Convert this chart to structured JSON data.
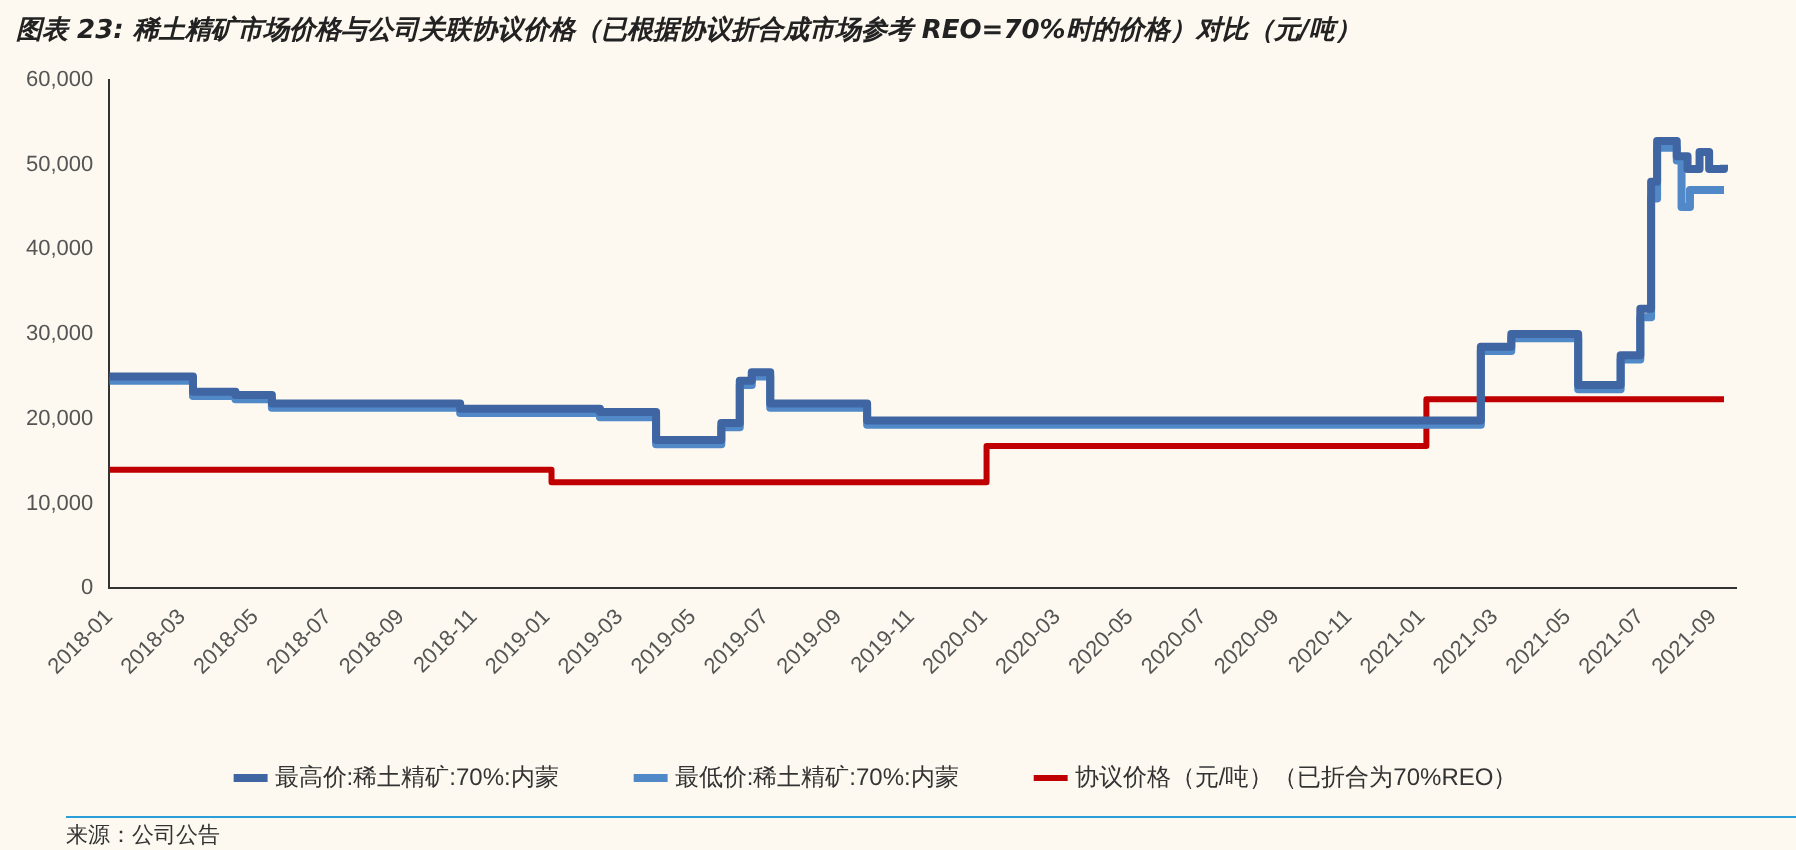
{
  "chart_data": {
    "type": "step",
    "title": "图表 23:  稀土精矿市场价格与公司关联协议价格（已根据协议折合成市场参考 REO=70%时的价格）对比（元/吨）",
    "annotations": [
      "来源：公司公告"
    ],
    "series": [
      {
        "name": "最高价:稀土精矿:70%:内蒙",
        "color": "#3f66a3",
        "x": [
          "2018-01-01",
          "2018-03-10",
          "2018-04-15",
          "2018-05-15",
          "2018-10-20",
          "2019-02-15",
          "2019-04-01",
          "2019-05-25",
          "2019-06-10",
          "2019-06-20",
          "2019-07-05",
          "2019-09-25",
          "2021-02-20",
          "2021-03-15",
          "2021-05-10",
          "2021-06-15",
          "2021-07-01",
          "2021-07-10",
          "2021-07-15",
          "2021-08-01",
          "2021-08-10",
          "2021-08-20",
          "2021-08-28",
          "2021-09-10"
        ],
        "values": [
          25000,
          23200,
          22800,
          21800,
          21200,
          20800,
          17500,
          19500,
          24500,
          25500,
          21800,
          19800,
          28500,
          30000,
          24000,
          27500,
          33000,
          48000,
          52800,
          51000,
          49500,
          51500,
          49500,
          50000
        ]
      },
      {
        "name": "最低价:稀土精矿:70%:内蒙",
        "color": "#5088c8",
        "x": [
          "2018-01-01",
          "2018-03-10",
          "2018-04-15",
          "2018-05-15",
          "2018-10-20",
          "2019-02-15",
          "2019-04-01",
          "2019-05-25",
          "2019-06-10",
          "2019-06-20",
          "2019-07-05",
          "2019-09-25",
          "2021-02-20",
          "2021-03-15",
          "2021-05-10",
          "2021-06-15",
          "2021-07-01",
          "2021-07-10",
          "2021-07-15",
          "2021-08-01",
          "2021-08-05",
          "2021-08-12",
          "2021-09-10"
        ],
        "values": [
          24500,
          22700,
          22300,
          21300,
          20700,
          20200,
          17000,
          19000,
          24000,
          25000,
          21300,
          19300,
          28000,
          29500,
          23500,
          27000,
          32000,
          46000,
          52000,
          50500,
          45000,
          47000,
          47000
        ]
      },
      {
        "name": "协议价格（元/吨）（已折合为70%REO）",
        "color": "#c00000",
        "x": [
          "2018-01-01",
          "2019-01-05",
          "2020-01-03",
          "2021-01-05",
          "2021-09-10"
        ],
        "values": [
          14000,
          12500,
          16800,
          22300,
          22300
        ]
      }
    ],
    "xlim": [
      "2018-01-01",
      "2021-09-20"
    ],
    "xticks": [
      "2018-01",
      "2018-03",
      "2018-05",
      "2018-07",
      "2018-09",
      "2018-11",
      "2019-01",
      "2019-03",
      "2019-05",
      "2019-07",
      "2019-09",
      "2019-11",
      "2020-01",
      "2020-03",
      "2020-05",
      "2020-07",
      "2020-09",
      "2020-11",
      "2021-01",
      "2021-03",
      "2021-05",
      "2021-07",
      "2021-09"
    ],
    "ylim": [
      0,
      60000
    ],
    "yticks": [
      0,
      {
        "value": 10000,
        "label": "10,000"
      },
      {
        "value": 20000,
        "label": "20,000"
      },
      {
        "value": 30000,
        "label": "30,000"
      },
      {
        "value": 40000,
        "label": "40,000"
      },
      {
        "value": 50000,
        "label": "50,000"
      },
      {
        "value": 60000,
        "label": "60,000"
      }
    ],
    "grid": false,
    "legend": "bottom",
    "line_style": "solid",
    "marker": "none"
  }
}
